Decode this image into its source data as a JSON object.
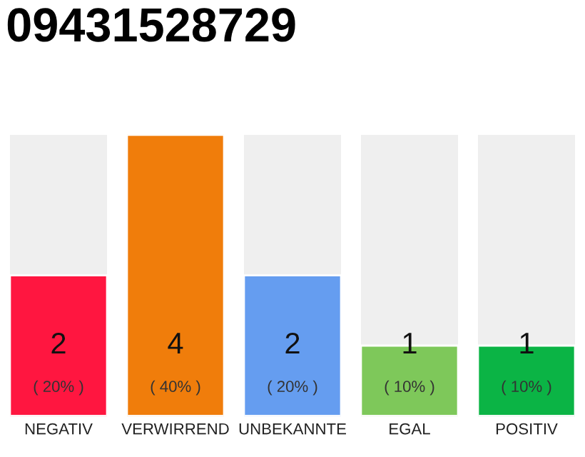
{
  "chart_data": {
    "type": "bar",
    "title": "09431528729",
    "categories": [
      "NEGATIV",
      "VERWIRREND",
      "UNBEKANNTE",
      "EGAL",
      "POSITIV"
    ],
    "values": [
      2,
      4,
      2,
      1,
      1
    ],
    "colors": [
      "#ff1640",
      "#f07d0b",
      "#659df0",
      "#7ec85a",
      "#0bb445"
    ],
    "value_labels": [
      "2\n( 20% )",
      "4\n( 40% )",
      "2\n( 20% )",
      "1\n( 10% )",
      "1\n( 10% )"
    ],
    "tick_labels": "x",
    "grid": false,
    "legend": false
  }
}
